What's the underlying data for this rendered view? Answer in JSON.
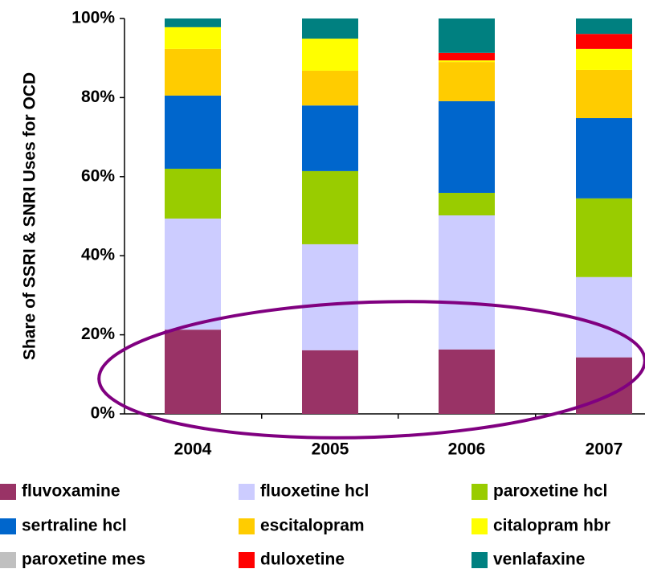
{
  "chart_data": {
    "type": "stacked_bar",
    "y_axis_label": "Share of SSRI & SNRI Uses for OCD",
    "categories": [
      "2004",
      "2005",
      "2006",
      "2007"
    ],
    "series": [
      {
        "name": "fluvoxamine",
        "color": "#993366",
        "values": [
          21.3,
          16.1,
          16.3,
          14.3
        ]
      },
      {
        "name": "fluoxetine hcl",
        "color": "#ccccff",
        "values": [
          28.1,
          26.8,
          33.9,
          20.3
        ]
      },
      {
        "name": "paroxetine hcl",
        "color": "#99cc00",
        "values": [
          12.6,
          18.5,
          5.7,
          19.9
        ]
      },
      {
        "name": "sertraline hcl",
        "color": "#0066cc",
        "values": [
          18.5,
          16.6,
          23.2,
          20.3
        ]
      },
      {
        "name": "escitalopram",
        "color": "#ffcc00",
        "values": [
          11.8,
          8.8,
          9.9,
          12.2
        ]
      },
      {
        "name": "citalopram hbr",
        "color": "#ffff00",
        "values": [
          5.5,
          8.1,
          0.4,
          5.3
        ]
      },
      {
        "name": "paroxetine mes",
        "color": "#c0c0c0",
        "values": [
          0,
          0,
          0,
          0
        ]
      },
      {
        "name": "duloxetine",
        "color": "#ff0000",
        "values": [
          0,
          0,
          1.9,
          3.8
        ]
      },
      {
        "name": "venlafaxine",
        "color": "#008080",
        "values": [
          2.2,
          5.1,
          8.7,
          3.9
        ]
      }
    ],
    "ylim": [
      0,
      100
    ],
    "yticks": [
      {
        "value": 0,
        "label": "0%"
      },
      {
        "value": 20,
        "label": "20%"
      },
      {
        "value": 40,
        "label": "40%"
      },
      {
        "value": 60,
        "label": "60%"
      },
      {
        "value": 80,
        "label": "80%"
      },
      {
        "value": 100,
        "label": "100%"
      }
    ]
  }
}
